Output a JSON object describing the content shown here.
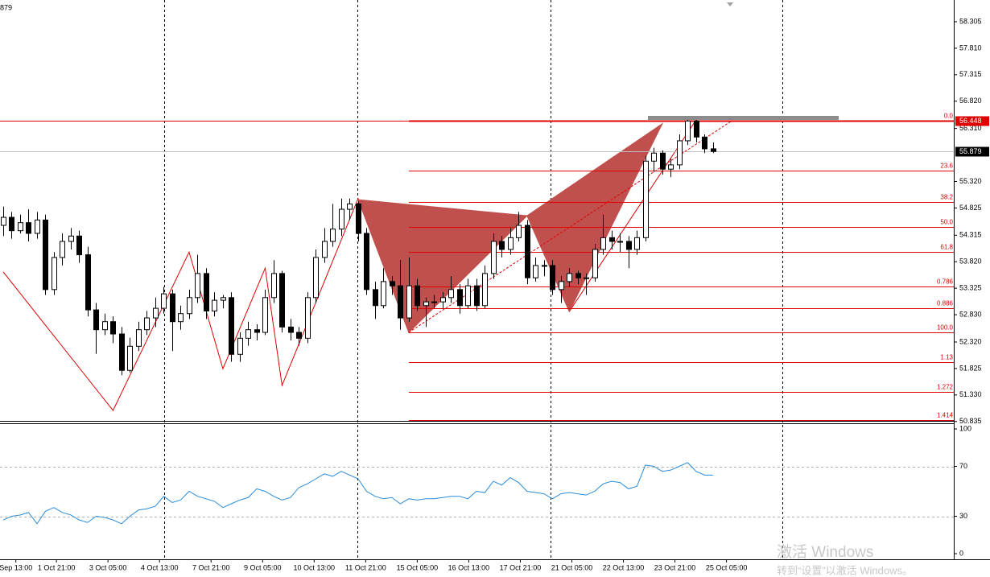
{
  "symbol_fragment": "879",
  "chart_data": [
    {
      "type": "candlestick",
      "ylim": [
        50.846,
        58.711
      ],
      "xlim": [
        -0.38,
        112.5
      ],
      "yticks": [
        58.305,
        {
          "value": 57.81,
          "label": "57.810"
        },
        57.315,
        {
          "value": 56.82,
          "label": "56.820"
        },
        {
          "value": 56.31,
          "label": "56.310"
        },
        {
          "value": 55.32,
          "label": "55.320"
        },
        54.825,
        54.315,
        {
          "value": 53.82,
          "label": "53.820"
        },
        53.325,
        {
          "value": 52.83,
          "label": "52.830"
        },
        {
          "value": 52.32,
          "label": "52.320"
        },
        51.825,
        {
          "value": 51.33,
          "label": "51.330"
        },
        50.835
      ],
      "xticks": [
        {
          "value": 1.5,
          "label": "Sep 13:00"
        },
        {
          "value": 6.3,
          "label": "1 Oct 21:00"
        },
        {
          "value": 12.4,
          "label": "3 Oct 05:00"
        },
        {
          "value": 18.5,
          "label": "4 Oct 13:00"
        },
        {
          "value": 24.6,
          "label": "7 Oct 21:00"
        },
        {
          "value": 30.7,
          "label": "9 Oct 05:00"
        },
        {
          "value": 36.8,
          "label": "10 Oct 13:00"
        },
        {
          "value": 42.9,
          "label": "11 Oct 21:00"
        },
        {
          "value": 49.0,
          "label": "15 Oct 05:00"
        },
        {
          "value": 55.1,
          "label": "16 Oct 13:00"
        },
        {
          "value": 61.2,
          "label": "17 Oct 21:00"
        },
        {
          "value": 67.3,
          "label": "21 Oct 05:00"
        },
        {
          "value": 73.4,
          "label": "22 Oct 13:00"
        },
        {
          "value": 79.5,
          "label": "23 Oct 21:00"
        },
        {
          "value": 85.6,
          "label": "25 Oct 05:00"
        }
      ],
      "ohlc": [
        [
          54.5,
          54.85,
          54.3,
          54.65
        ],
        [
          54.65,
          54.75,
          54.25,
          54.4
        ],
        [
          54.4,
          54.7,
          54.35,
          54.55
        ],
        [
          54.55,
          54.8,
          54.2,
          54.35
        ],
        [
          54.35,
          54.75,
          54.25,
          54.6
        ],
        [
          54.6,
          54.7,
          53.2,
          53.3
        ],
        [
          53.3,
          54.0,
          53.2,
          53.9
        ],
        [
          53.9,
          54.35,
          53.75,
          54.2
        ],
        [
          54.2,
          54.45,
          54.05,
          54.3
        ],
        [
          54.3,
          54.4,
          53.8,
          53.95
        ],
        [
          53.95,
          54.1,
          52.8,
          52.92
        ],
        [
          52.92,
          53.05,
          52.1,
          52.55
        ],
        [
          52.55,
          52.85,
          52.45,
          52.7
        ],
        [
          52.7,
          52.8,
          52.3,
          52.47
        ],
        [
          52.47,
          52.6,
          51.7,
          51.79
        ],
        [
          51.79,
          52.4,
          51.75,
          52.24
        ],
        [
          52.24,
          52.7,
          52.15,
          52.55
        ],
        [
          52.55,
          52.9,
          52.45,
          52.77
        ],
        [
          52.77,
          53.15,
          52.6,
          52.95
        ],
        [
          52.95,
          53.35,
          52.85,
          53.22
        ],
        [
          53.22,
          53.3,
          52.15,
          52.7
        ],
        [
          52.7,
          53.0,
          52.55,
          52.85
        ],
        [
          52.85,
          53.3,
          52.75,
          53.15
        ],
        [
          53.15,
          53.95,
          53.05,
          53.6
        ],
        [
          53.6,
          53.7,
          52.75,
          52.9
        ],
        [
          52.9,
          53.25,
          52.8,
          53.1
        ],
        [
          53.1,
          53.2,
          52.95,
          53.15
        ],
        [
          53.15,
          53.25,
          51.95,
          52.09
        ],
        [
          52.09,
          52.5,
          51.95,
          52.39
        ],
        [
          52.39,
          52.7,
          52.25,
          52.55
        ],
        [
          52.55,
          52.65,
          52.35,
          52.5
        ],
        [
          52.5,
          53.3,
          52.45,
          53.15
        ],
        [
          53.15,
          53.85,
          53.05,
          53.6
        ],
        [
          53.6,
          53.65,
          52.5,
          52.6
        ],
        [
          52.6,
          52.75,
          52.35,
          52.5
        ],
        [
          52.5,
          52.6,
          52.25,
          52.39
        ],
        [
          52.39,
          53.25,
          52.3,
          53.15
        ],
        [
          53.15,
          54.05,
          53.05,
          53.9
        ],
        [
          53.9,
          54.45,
          53.8,
          54.2
        ],
        [
          54.2,
          54.9,
          54.1,
          54.43
        ],
        [
          54.43,
          55.0,
          54.3,
          54.8
        ],
        [
          54.8,
          55.0,
          54.6,
          54.9
        ],
        [
          54.9,
          54.95,
          54.2,
          54.35
        ],
        [
          54.35,
          54.45,
          53.2,
          53.3
        ],
        [
          53.3,
          53.45,
          52.75,
          53.0
        ],
        [
          53.0,
          53.7,
          52.95,
          53.45
        ],
        [
          53.45,
          53.55,
          53.2,
          53.37
        ],
        [
          53.37,
          53.85,
          52.55,
          52.77
        ],
        [
          52.77,
          53.9,
          52.7,
          53.37
        ],
        [
          53.37,
          53.5,
          52.9,
          53.0
        ],
        [
          53.0,
          53.15,
          52.6,
          53.07
        ],
        [
          53.07,
          53.2,
          52.95,
          53.07
        ],
        [
          53.07,
          53.25,
          52.95,
          53.15
        ],
        [
          53.15,
          53.55,
          53.05,
          53.3
        ],
        [
          53.3,
          53.4,
          52.85,
          53.0
        ],
        [
          53.0,
          53.5,
          52.95,
          53.37
        ],
        [
          53.37,
          53.5,
          52.9,
          53.0
        ],
        [
          53.0,
          53.75,
          52.95,
          53.6
        ],
        [
          53.6,
          54.35,
          53.5,
          54.2
        ],
        [
          54.2,
          54.3,
          53.9,
          54.05
        ],
        [
          54.05,
          54.45,
          53.95,
          54.27
        ],
        [
          54.27,
          54.75,
          54.2,
          54.5
        ],
        [
          54.5,
          54.6,
          53.4,
          53.52
        ],
        [
          53.52,
          53.9,
          53.45,
          53.75
        ],
        [
          53.75,
          53.85,
          53.55,
          53.75
        ],
        [
          53.75,
          53.85,
          53.2,
          53.3
        ],
        [
          53.3,
          53.55,
          53.05,
          53.45
        ],
        [
          53.45,
          53.7,
          53.35,
          53.6
        ],
        [
          53.6,
          53.65,
          53.4,
          53.52
        ],
        [
          53.52,
          53.6,
          53.2,
          53.52
        ],
        [
          53.52,
          54.15,
          53.45,
          54.05
        ],
        [
          54.05,
          54.7,
          53.95,
          54.27
        ],
        [
          54.27,
          54.4,
          54.05,
          54.2
        ],
        [
          54.2,
          54.35,
          54.0,
          54.2
        ],
        [
          54.2,
          54.3,
          53.7,
          54.05
        ],
        [
          54.05,
          54.4,
          53.95,
          54.27
        ],
        [
          54.27,
          55.8,
          54.2,
          55.7
        ],
        [
          55.7,
          55.95,
          55.5,
          55.85
        ],
        [
          55.85,
          55.9,
          55.45,
          55.55
        ],
        [
          55.55,
          55.75,
          55.4,
          55.63
        ],
        [
          55.63,
          56.2,
          55.55,
          56.08
        ],
        [
          56.08,
          56.5,
          56.0,
          56.45
        ],
        [
          56.45,
          56.48,
          56.05,
          56.15
        ],
        [
          56.15,
          56.2,
          55.85,
          55.93
        ],
        [
          55.93,
          56.05,
          55.85,
          55.88
        ]
      ],
      "price_lines": [
        {
          "value": 56.448,
          "color": "#e00000",
          "box": "#e00000"
        },
        {
          "value": 55.879,
          "color": "#c0c0c0",
          "box": "#000000"
        }
      ],
      "fib_start": 48,
      "fib_color": "#e00000",
      "fib_levels": [
        {
          "label": "0.0",
          "value": 56.45
        },
        {
          "label": "23.6",
          "value": 55.52
        },
        {
          "label": "38.2",
          "value": 54.94
        },
        {
          "label": "50.0",
          "value": 54.47
        },
        {
          "label": "61.8",
          "value": 54.01
        },
        {
          "label": "0.786",
          "value": 53.35
        },
        {
          "label": "0.886",
          "value": 52.95
        },
        {
          "label": "100.0",
          "value": 52.5
        },
        {
          "label": "1.13",
          "value": 51.94
        },
        {
          "label": "1.272",
          "value": 51.39
        },
        {
          "label": "1.414",
          "value": 50.86
        }
      ],
      "zigzag": {
        "color": "#e00000",
        "index": [
          0,
          13,
          22,
          26,
          31,
          33,
          42,
          48,
          62,
          67,
          82
        ],
        "values": [
          53.63,
          51.04,
          54.0,
          51.82,
          53.7,
          51.51,
          55.0,
          52.5,
          54.68,
          52.89,
          56.47
        ]
      },
      "pattern": {
        "color": "#c0504d",
        "triangles": [
          {
            "index": [
              42,
              48,
              62
            ],
            "values": [
              54.98,
              52.5,
              54.68
            ]
          },
          {
            "index": [
              62,
              67,
              78
            ],
            "values": [
              54.68,
              52.89,
              56.4
            ]
          }
        ]
      },
      "trendline": {
        "color": "#e00000",
        "index": [
          48,
          86.3
        ],
        "values": [
          52.5,
          56.46
        ]
      }
    },
    {
      "type": "line",
      "ylim": [
        0,
        100
      ],
      "yticks": [
        100,
        70,
        30,
        0
      ],
      "color": "#2a8bd8",
      "values": [
        27,
        30,
        31,
        33,
        24,
        34,
        37,
        33,
        31,
        27,
        25,
        30,
        29,
        27,
        24,
        30,
        35,
        36,
        38,
        46,
        41,
        43,
        50,
        46,
        44,
        42,
        37,
        40,
        43,
        45,
        52,
        50,
        46,
        43,
        45,
        53,
        56,
        60,
        64,
        62,
        66,
        63,
        60,
        50,
        46,
        44,
        45,
        40,
        44,
        43,
        44,
        44,
        45,
        46,
        46,
        44,
        50,
        49,
        58,
        55,
        61,
        57,
        50,
        49,
        48,
        44,
        48,
        49,
        48,
        47,
        50,
        56,
        58,
        57,
        52,
        54,
        71,
        70,
        66,
        67,
        70,
        73,
        66,
        63,
        63
      ]
    }
  ],
  "watermark": {
    "line1": "激活 Windows",
    "line2": "转到“设置”以激活 Windows。"
  }
}
